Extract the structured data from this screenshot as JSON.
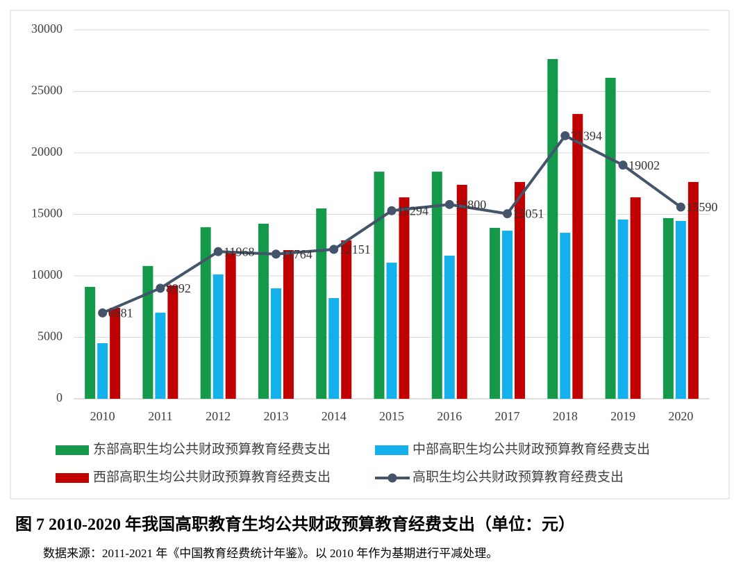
{
  "chart_data": {
    "type": "bar",
    "categories": [
      "2010",
      "2011",
      "2012",
      "2013",
      "2014",
      "2015",
      "2016",
      "2017",
      "2018",
      "2019",
      "2020"
    ],
    "series": [
      {
        "name": "东部高职生均公共财政预算教育经费支出",
        "color": "#14994a",
        "values": [
          9100,
          10800,
          13950,
          14240,
          15480,
          18470,
          18470,
          13900,
          27630,
          26100,
          14690
        ]
      },
      {
        "name": "中部高职生均公共财政预算教育经费支出",
        "color": "#14b0ec",
        "values": [
          4520,
          7000,
          10110,
          8980,
          8190,
          11070,
          11640,
          13670,
          13500,
          14580,
          14460
        ]
      },
      {
        "name": "西部高职生均公共财政预算教育经费支出",
        "color": "#c00000",
        "values": [
          7400,
          9210,
          11860,
          12090,
          12880,
          16380,
          17400,
          17630,
          23160,
          16380,
          17630
        ]
      },
      {
        "name": "高职生均公共财政预算教育经费支出",
        "color": "#44546a",
        "type": "line",
        "data_labels": true,
        "values": [
          6981,
          8992,
          11968,
          11764,
          12151,
          15294,
          15800,
          15051,
          21394,
          19002,
          15590
        ]
      }
    ],
    "ylim": [
      0,
      30000
    ],
    "yticks": [
      0,
      5000,
      10000,
      15000,
      20000,
      25000,
      30000
    ],
    "grid": true,
    "legend": "bottom"
  },
  "caption": "图 7 2010-2020 年我国高职教育生均公共财政预算教育经费支出（单位：元）",
  "source": "数据来源：2011-2021 年《中国教育经费统计年鉴》。以 2010 年作为基期进行平减处理。"
}
